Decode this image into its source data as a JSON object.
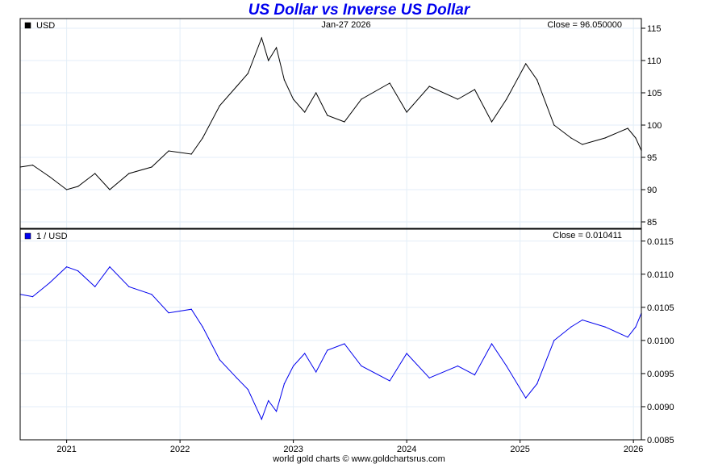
{
  "chart_data": [
    {
      "type": "line",
      "title": "US Dollar vs Inverse US Dollar",
      "legend": "USD",
      "legend_color": "#000000",
      "date_label": "Jan-27  2026",
      "close_label": "Close = 96.050000",
      "ylim": [
        84,
        116.5
      ],
      "yticks": [
        85,
        90,
        95,
        100,
        105,
        110,
        115
      ],
      "ytick_labels": [
        "85",
        "90",
        "95",
        "100",
        "105",
        "110",
        "115"
      ],
      "x": [
        2020.59,
        2020.7,
        2020.85,
        2021.0,
        2021.1,
        2021.25,
        2021.38,
        2021.55,
        2021.75,
        2021.9,
        2022.1,
        2022.2,
        2022.35,
        2022.5,
        2022.6,
        2022.72,
        2022.78,
        2022.85,
        2022.92,
        2023.0,
        2023.1,
        2023.2,
        2023.3,
        2023.45,
        2023.6,
        2023.85,
        2024.0,
        2024.2,
        2024.45,
        2024.6,
        2024.75,
        2024.88,
        2025.05,
        2025.15,
        2025.3,
        2025.45,
        2025.55,
        2025.75,
        2025.95,
        2026.02,
        2026.07
      ],
      "values": [
        93.5,
        93.8,
        92,
        90,
        90.5,
        92.5,
        90,
        92.5,
        93.5,
        96,
        95.5,
        98,
        103,
        106,
        108,
        113.5,
        110,
        112,
        107,
        104,
        102,
        105,
        101.5,
        100.5,
        104,
        106.5,
        102,
        106,
        104,
        105.5,
        100.5,
        104,
        109.5,
        107,
        100,
        98,
        97,
        98,
        99.5,
        98,
        96.05
      ],
      "color": "#000000"
    },
    {
      "type": "line",
      "legend": "1 / USD",
      "legend_color": "#0000ee",
      "close_label": "Close = 0.010411",
      "ylim": [
        0.0085,
        0.01168
      ],
      "yticks": [
        0.0085,
        0.009,
        0.0095,
        0.01,
        0.0105,
        0.011,
        0.0115
      ],
      "ytick_labels": [
        "0.0085",
        "0.0090",
        "0.0095",
        "0.0100",
        "0.0105",
        "0.0110",
        "0.0115"
      ],
      "values": [
        0.010695,
        0.010661,
        0.01087,
        0.011111,
        0.01105,
        0.010811,
        0.011111,
        0.010811,
        0.010695,
        0.010417,
        0.010471,
        0.010204,
        0.009709,
        0.009434,
        0.009259,
        0.008811,
        0.009091,
        0.008929,
        0.009346,
        0.009615,
        0.009804,
        0.009524,
        0.009852,
        0.00995,
        0.009615,
        0.00939,
        0.009804,
        0.009434,
        0.009615,
        0.009479,
        0.00995,
        0.009615,
        0.009132,
        0.009346,
        0.01,
        0.010204,
        0.010309,
        0.010204,
        0.01005,
        0.010204,
        0.010411
      ],
      "color": "#0000ee"
    }
  ],
  "xaxis": {
    "xlim": [
      2020.59,
      2026.07
    ],
    "ticks": [
      2021,
      2022,
      2023,
      2024,
      2025,
      2026
    ],
    "tick_labels": [
      "2021",
      "2022",
      "2023",
      "2024",
      "2025",
      "2026"
    ]
  },
  "footer": "world gold charts © www.goldchartsrus.com"
}
